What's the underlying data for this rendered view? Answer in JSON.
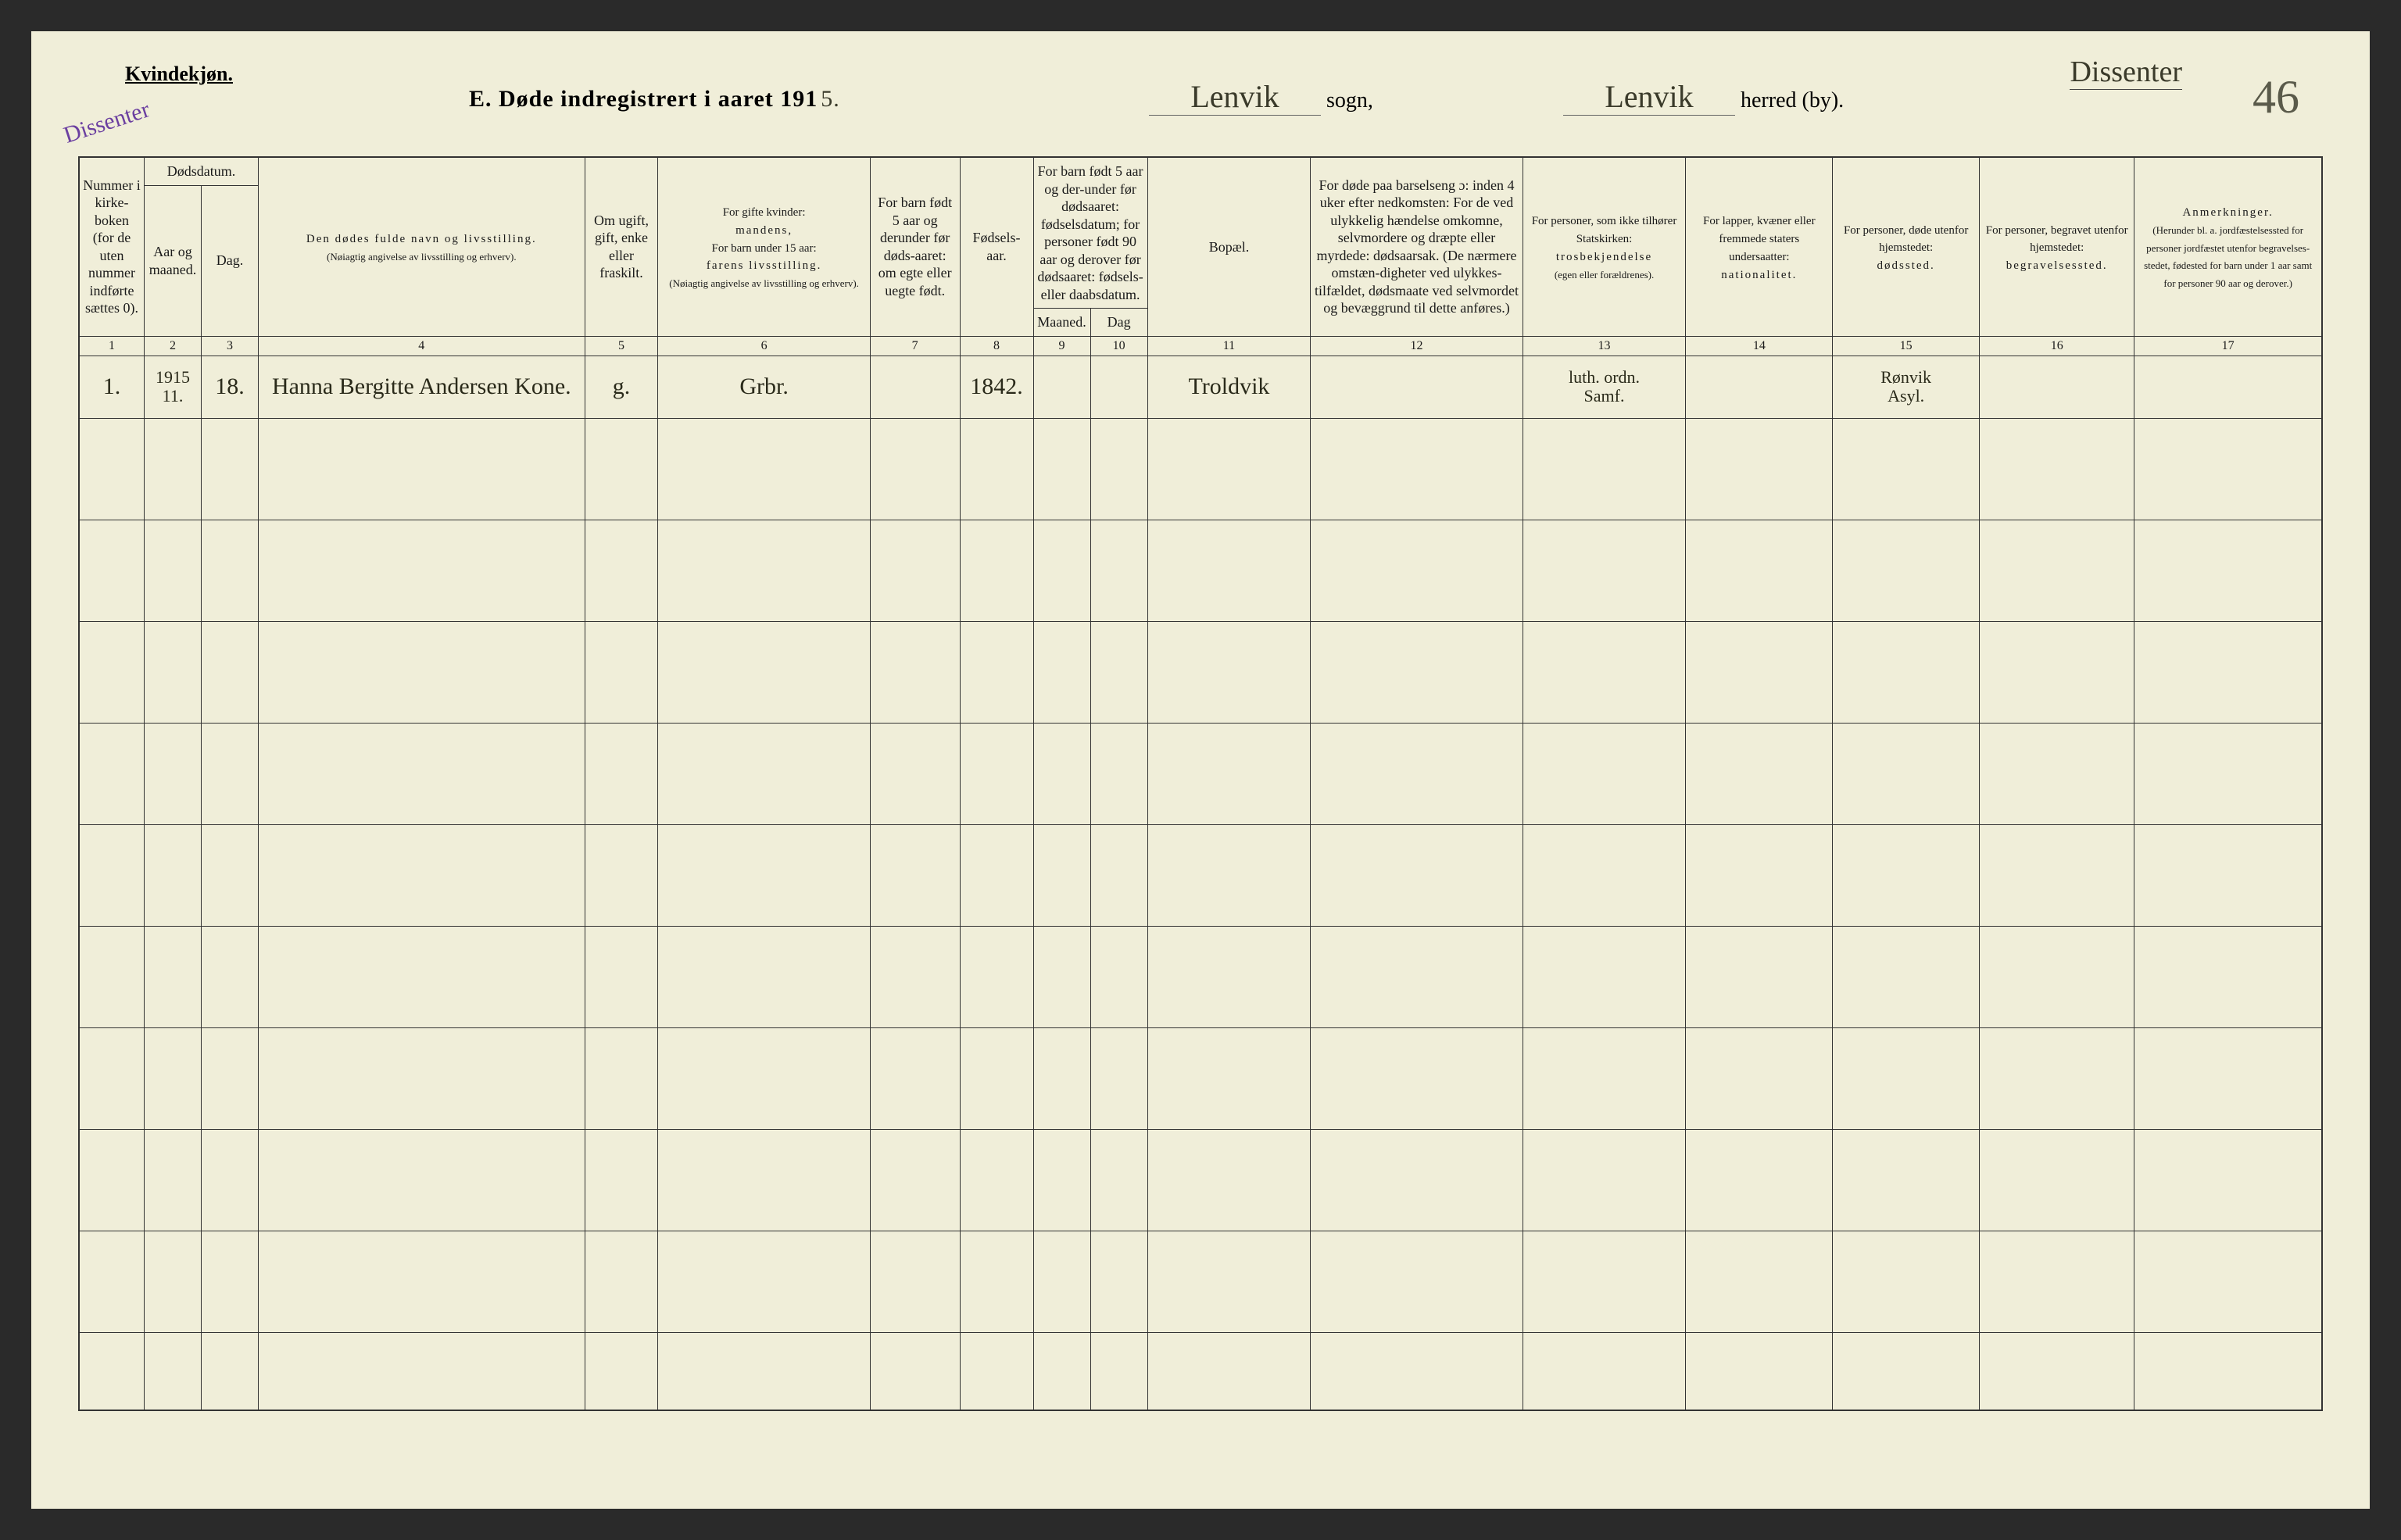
{
  "header": {
    "gender_label": "Kvindekjøn.",
    "stamp": "Dissenter",
    "title_prefix": "E.   Døde indregistrert i aaret 191",
    "year_suffix": "5.",
    "sogn_value": "Lenvik",
    "sogn_label": "sogn,",
    "herred_value": "Lenvik",
    "herred_label": "herred (by).",
    "top_right_note": "Dissenter",
    "page_number": "46"
  },
  "columns": {
    "c1": "Nummer i kirke-boken (for de uten nummer indførte sættes 0).",
    "dods": "Dødsdatum.",
    "c2": "Aar og maaned.",
    "c3": "Dag.",
    "c4_a": "Den dødes fulde navn og livsstilling.",
    "c4_b": "(Nøiagtig angivelse av livsstilling og erhverv).",
    "c5": "Om ugift, gift, enke eller fraskilt.",
    "c6_a": "For gifte kvinder:",
    "c6_b": "mandens,",
    "c6_c": "For barn under 15 aar:",
    "c6_d": "farens livsstilling.",
    "c6_e": "(Nøiagtig angivelse av livsstilling og erhverv).",
    "c7": "For barn født 5 aar og derunder før døds-aaret: om egte eller uegte født.",
    "c8": "Fødsels-aar.",
    "c9_10_top": "For barn født 5 aar og der-under før dødsaaret: fødselsdatum; for personer født 90 aar og derover før dødsaaret: fødsels- eller daabsdatum.",
    "c9": "Maaned.",
    "c10": "Dag",
    "c11": "Bopæl.",
    "c12": "For døde paa barselseng ɔ: inden 4 uker efter nedkomsten: For de ved ulykkelig hændelse omkomne, selvmordere og dræpte eller myrdede: dødsaarsak. (De nærmere omstæn-digheter ved ulykkes-tilfældet, dødsmaate ved selvmordet og bevæggrund til dette anføres.)",
    "c13_a": "For personer, som ikke tilhører Statskirken:",
    "c13_b": "trosbekjendelse",
    "c13_c": "(egen eller forældrenes).",
    "c14_a": "For lapper, kvæner eller fremmede staters undersaatter:",
    "c14_b": "nationalitet.",
    "c15_a": "For personer, døde utenfor hjemstedet:",
    "c15_b": "dødssted.",
    "c16_a": "For personer, begravet utenfor hjemstedet:",
    "c16_b": "begravelsessted.",
    "c17_a": "Anmerkninger.",
    "c17_b": "(Herunder bl. a. jordfæstelsessted for personer jordfæstet utenfor begravelses-stedet, fødested for barn under 1 aar samt for personer 90 aar og derover.)"
  },
  "colnums": [
    "1",
    "2",
    "3",
    "4",
    "5",
    "6",
    "7",
    "8",
    "9",
    "10",
    "11",
    "12",
    "13",
    "14",
    "15",
    "16",
    "17"
  ],
  "rows": [
    {
      "num": "1.",
      "year_month_a": "1915",
      "year_month_b": "11.",
      "day": "18.",
      "name": "Hanna Bergitte Andersen Kone.",
      "marital": "g.",
      "spouse": "Grbr.",
      "c7": "",
      "birth_year": "1842.",
      "c9": "",
      "c10": "",
      "bopael": "Troldvik",
      "c12": "",
      "c13_a": "luth. ordn.",
      "c13_b": "Samf.",
      "c14": "",
      "c15_a": "Rønvik",
      "c15_b": "Asyl.",
      "c16": "",
      "c17": ""
    }
  ],
  "blank_row_count": 10,
  "style": {
    "page_bg": "#f0eed9",
    "border_color": "#333333",
    "ink_color": "#2a2a1a",
    "stamp_color": "#6b3fa0",
    "header_font_size": 18,
    "tiny_font_size": 13
  }
}
